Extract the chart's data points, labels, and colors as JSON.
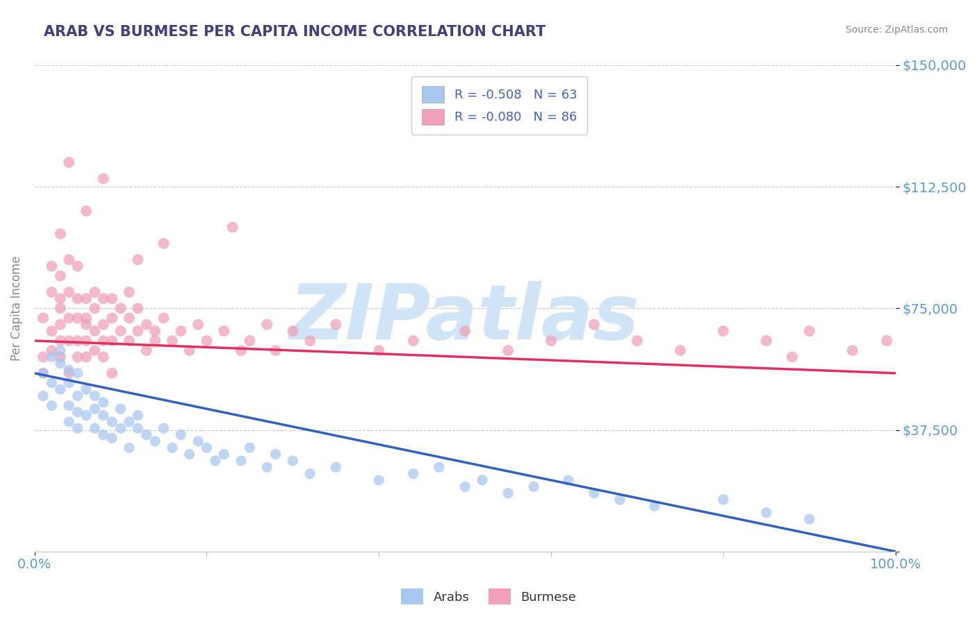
{
  "title": "ARAB VS BURMESE PER CAPITA INCOME CORRELATION CHART",
  "source": "Source: ZipAtlas.com",
  "ylabel": "Per Capita Income",
  "xlim": [
    0.0,
    1.0
  ],
  "ylim": [
    0,
    150000
  ],
  "yticks": [
    0,
    37500,
    75000,
    112500,
    150000
  ],
  "ytick_labels": [
    "",
    "$37,500",
    "$75,000",
    "$112,500",
    "$150,000"
  ],
  "xtick_labels": [
    "0.0%",
    "100.0%"
  ],
  "arab_color": "#a8c8f0",
  "burmese_color": "#f0a0b8",
  "arab_line_color": "#3060c0",
  "burmese_line_color": "#e03060",
  "arab_R": -0.508,
  "arab_N": 63,
  "burmese_R": -0.08,
  "burmese_N": 86,
  "background_color": "#ffffff",
  "grid_color": "#bbbbbb",
  "title_color": "#404080",
  "axis_label_color": "#888888",
  "ytick_color": "#5b9bd5",
  "watermark": "ZIPatlas",
  "watermark_color": "#d0e4f8",
  "legend_label_color": "#333333",
  "legend_value_color": "#4060c0",
  "arab_intercept": 55000,
  "arab_slope": -55000,
  "burmese_intercept": 65000,
  "burmese_slope": -10000,
  "arab_x": [
    0.01,
    0.01,
    0.02,
    0.02,
    0.02,
    0.03,
    0.03,
    0.03,
    0.04,
    0.04,
    0.04,
    0.04,
    0.05,
    0.05,
    0.05,
    0.05,
    0.06,
    0.06,
    0.07,
    0.07,
    0.07,
    0.08,
    0.08,
    0.08,
    0.09,
    0.09,
    0.1,
    0.1,
    0.11,
    0.11,
    0.12,
    0.12,
    0.13,
    0.14,
    0.15,
    0.16,
    0.17,
    0.18,
    0.19,
    0.2,
    0.21,
    0.22,
    0.24,
    0.25,
    0.27,
    0.28,
    0.3,
    0.32,
    0.35,
    0.4,
    0.44,
    0.47,
    0.5,
    0.52,
    0.55,
    0.58,
    0.62,
    0.65,
    0.68,
    0.72,
    0.8,
    0.85,
    0.9
  ],
  "arab_y": [
    55000,
    48000,
    52000,
    60000,
    45000,
    58000,
    50000,
    62000,
    56000,
    45000,
    52000,
    40000,
    55000,
    48000,
    43000,
    38000,
    50000,
    42000,
    48000,
    38000,
    44000,
    46000,
    36000,
    42000,
    40000,
    35000,
    44000,
    38000,
    40000,
    32000,
    38000,
    42000,
    36000,
    34000,
    38000,
    32000,
    36000,
    30000,
    34000,
    32000,
    28000,
    30000,
    28000,
    32000,
    26000,
    30000,
    28000,
    24000,
    26000,
    22000,
    24000,
    26000,
    20000,
    22000,
    18000,
    20000,
    22000,
    18000,
    16000,
    14000,
    16000,
    12000,
    10000
  ],
  "burmese_x": [
    0.01,
    0.01,
    0.01,
    0.02,
    0.02,
    0.02,
    0.02,
    0.03,
    0.03,
    0.03,
    0.03,
    0.03,
    0.03,
    0.04,
    0.04,
    0.04,
    0.04,
    0.04,
    0.05,
    0.05,
    0.05,
    0.05,
    0.05,
    0.06,
    0.06,
    0.06,
    0.06,
    0.06,
    0.07,
    0.07,
    0.07,
    0.07,
    0.08,
    0.08,
    0.08,
    0.08,
    0.09,
    0.09,
    0.09,
    0.09,
    0.1,
    0.1,
    0.11,
    0.11,
    0.11,
    0.12,
    0.12,
    0.13,
    0.13,
    0.14,
    0.14,
    0.15,
    0.16,
    0.17,
    0.18,
    0.19,
    0.2,
    0.22,
    0.24,
    0.25,
    0.27,
    0.28,
    0.3,
    0.32,
    0.35,
    0.4,
    0.44,
    0.5,
    0.55,
    0.6,
    0.65,
    0.7,
    0.75,
    0.8,
    0.85,
    0.88,
    0.9,
    0.95,
    0.99,
    0.23,
    0.15,
    0.12,
    0.08,
    0.06,
    0.04,
    0.03
  ],
  "burmese_y": [
    72000,
    60000,
    55000,
    80000,
    68000,
    88000,
    62000,
    75000,
    65000,
    70000,
    85000,
    60000,
    78000,
    90000,
    72000,
    65000,
    55000,
    80000,
    72000,
    65000,
    88000,
    78000,
    60000,
    70000,
    65000,
    78000,
    60000,
    72000,
    68000,
    75000,
    62000,
    80000,
    70000,
    65000,
    78000,
    60000,
    72000,
    65000,
    78000,
    55000,
    68000,
    75000,
    72000,
    65000,
    80000,
    68000,
    75000,
    62000,
    70000,
    68000,
    65000,
    72000,
    65000,
    68000,
    62000,
    70000,
    65000,
    68000,
    62000,
    65000,
    70000,
    62000,
    68000,
    65000,
    70000,
    62000,
    65000,
    68000,
    62000,
    65000,
    70000,
    65000,
    62000,
    68000,
    65000,
    60000,
    68000,
    62000,
    65000,
    100000,
    95000,
    90000,
    115000,
    105000,
    120000,
    98000
  ],
  "arab_sizes_base": 120,
  "burmese_sizes_base": 130
}
